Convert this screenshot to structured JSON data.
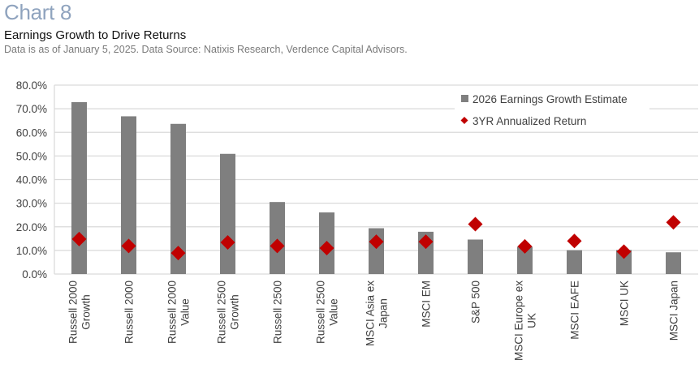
{
  "header": {
    "chart_number": "Chart 8",
    "title": "Earnings Growth to Drive Returns",
    "subtitle": "Data is as of January 5, 2025. Data Source: Natixis Research, Verdence Capital Advisors."
  },
  "colors": {
    "bar": "#7f7f7f",
    "marker": "#c00000",
    "gridline": "#d9d9d9",
    "title_accent": "#8fa3be"
  },
  "chart_data": {
    "type": "bar",
    "title": "Earnings Growth to Drive Returns",
    "xlabel": "",
    "ylabel": "",
    "ylim": [
      0,
      80
    ],
    "y_ticks": [
      0,
      10,
      20,
      30,
      40,
      50,
      60,
      70,
      80
    ],
    "y_tick_labels": [
      "0.0%",
      "10.0%",
      "20.0%",
      "30.0%",
      "40.0%",
      "50.0%",
      "60.0%",
      "70.0%",
      "80.0%"
    ],
    "grid": true,
    "legend_position": "top-right",
    "categories": [
      [
        "Russell 2000",
        "Growth"
      ],
      [
        "Russell 2000"
      ],
      [
        "Russell 2000",
        "Value"
      ],
      [
        "Russell 2500",
        "Growth"
      ],
      [
        "Russell 2500"
      ],
      [
        "Russell 2500",
        "Value"
      ],
      [
        "MSCI Asia ex",
        "Japan"
      ],
      [
        "MSCI EM"
      ],
      [
        "S&P 500"
      ],
      [
        "MSCI Europe ex",
        "UK"
      ],
      [
        "MSCI EAFE"
      ],
      [
        "MSCI UK"
      ],
      [
        "MSCI Japan"
      ]
    ],
    "series": [
      {
        "name": "2026 Earnings Growth Estimate",
        "kind": "bar",
        "legend_symbol": "square",
        "values": [
          72.8,
          66.8,
          63.6,
          50.9,
          30.5,
          26.1,
          19.4,
          17.9,
          14.6,
          11.6,
          10.1,
          10.2,
          9.2
        ]
      },
      {
        "name": "3YR Annualized Return",
        "kind": "marker",
        "legend_symbol": "diamond",
        "values": [
          14.8,
          11.9,
          8.9,
          13.4,
          11.9,
          11.0,
          13.7,
          13.7,
          21.1,
          11.7,
          14.0,
          9.5,
          21.9
        ]
      }
    ]
  }
}
